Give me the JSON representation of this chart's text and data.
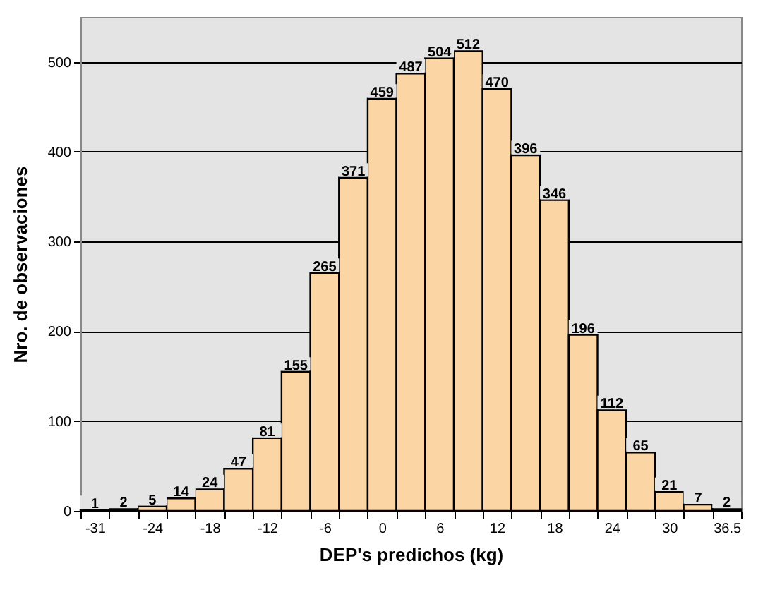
{
  "chart_data": {
    "type": "bar",
    "xlabel": "DEP's predichos (kg)",
    "ylabel": "Nro. de observaciones",
    "categories": [
      "-31",
      null,
      "-24",
      null,
      "-18",
      null,
      "-12",
      null,
      "-6",
      null,
      "0",
      null,
      "6",
      null,
      "12",
      null,
      "18",
      null,
      "24",
      null,
      "30",
      null,
      "36.5"
    ],
    "values": [
      1,
      2,
      5,
      14,
      24,
      47,
      81,
      155,
      265,
      371,
      459,
      487,
      504,
      512,
      470,
      396,
      346,
      196,
      112,
      65,
      21,
      7,
      2
    ],
    "color": "#fcd5a5",
    "ylim": [
      0,
      550
    ],
    "yticks": [
      0,
      100,
      200,
      300,
      400,
      500
    ],
    "grid": "y",
    "data_labels": true
  }
}
